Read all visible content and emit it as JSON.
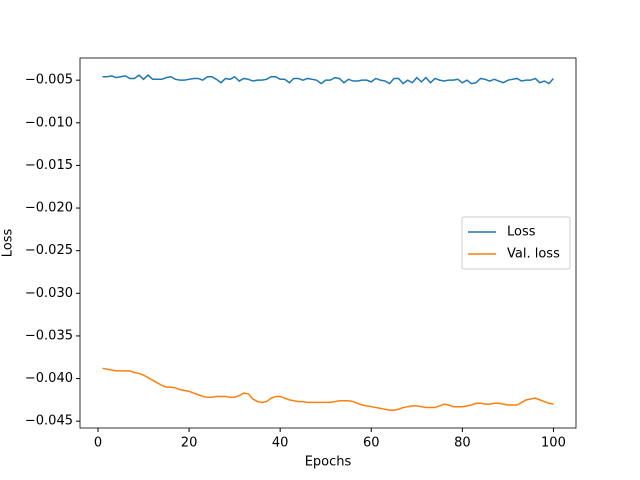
{
  "chart_data": {
    "type": "line",
    "xlabel": "Epochs",
    "ylabel": "Loss",
    "x": [
      1,
      2,
      3,
      4,
      5,
      6,
      7,
      8,
      9,
      10,
      11,
      12,
      13,
      14,
      15,
      16,
      17,
      18,
      19,
      20,
      21,
      22,
      23,
      24,
      25,
      26,
      27,
      28,
      29,
      30,
      31,
      32,
      33,
      34,
      35,
      36,
      37,
      38,
      39,
      40,
      41,
      42,
      43,
      44,
      45,
      46,
      47,
      48,
      49,
      50,
      51,
      52,
      53,
      54,
      55,
      56,
      57,
      58,
      59,
      60,
      61,
      62,
      63,
      64,
      65,
      66,
      67,
      68,
      69,
      70,
      71,
      72,
      73,
      74,
      75,
      76,
      77,
      78,
      79,
      80,
      81,
      82,
      83,
      84,
      85,
      86,
      87,
      88,
      89,
      90,
      91,
      92,
      93,
      94,
      95,
      96,
      97,
      98,
      99,
      100
    ],
    "series": [
      {
        "name": "Loss",
        "color": "#1f77b4",
        "values": [
          -0.0046,
          -0.0046,
          -0.0045,
          -0.0047,
          -0.0046,
          -0.0045,
          -0.0048,
          -0.0048,
          -0.0044,
          -0.0049,
          -0.0044,
          -0.0049,
          -0.0049,
          -0.0049,
          -0.0047,
          -0.0046,
          -0.0049,
          -0.005,
          -0.005,
          -0.0049,
          -0.0048,
          -0.0048,
          -0.005,
          -0.0046,
          -0.0046,
          -0.0049,
          -0.0053,
          -0.0048,
          -0.0049,
          -0.0046,
          -0.0051,
          -0.0048,
          -0.0049,
          -0.0051,
          -0.005,
          -0.005,
          -0.0049,
          -0.0046,
          -0.0046,
          -0.0049,
          -0.0049,
          -0.0053,
          -0.0048,
          -0.0048,
          -0.005,
          -0.0048,
          -0.0049,
          -0.005,
          -0.0054,
          -0.005,
          -0.005,
          -0.0047,
          -0.0048,
          -0.0053,
          -0.0049,
          -0.0051,
          -0.0051,
          -0.005,
          -0.005,
          -0.0052,
          -0.0048,
          -0.005,
          -0.0051,
          -0.0054,
          -0.0048,
          -0.0048,
          -0.0054,
          -0.005,
          -0.0053,
          -0.0047,
          -0.0052,
          -0.0047,
          -0.0053,
          -0.0048,
          -0.005,
          -0.0051,
          -0.005,
          -0.005,
          -0.0049,
          -0.0053,
          -0.005,
          -0.0054,
          -0.0053,
          -0.0048,
          -0.0049,
          -0.0051,
          -0.0049,
          -0.0051,
          -0.0053,
          -0.005,
          -0.0049,
          -0.0048,
          -0.0051,
          -0.005,
          -0.005,
          -0.0048,
          -0.0053,
          -0.0051,
          -0.0054,
          -0.0048
        ]
      },
      {
        "name": "Val. loss",
        "color": "#ff7f0e",
        "values": [
          -0.0388,
          -0.0389,
          -0.039,
          -0.0391,
          -0.0391,
          -0.0391,
          -0.0391,
          -0.0393,
          -0.0394,
          -0.0396,
          -0.0399,
          -0.0402,
          -0.0405,
          -0.0408,
          -0.041,
          -0.041,
          -0.0411,
          -0.0413,
          -0.0414,
          -0.0415,
          -0.0417,
          -0.0419,
          -0.0421,
          -0.0422,
          -0.0422,
          -0.0421,
          -0.0421,
          -0.0421,
          -0.0422,
          -0.0422,
          -0.042,
          -0.0417,
          -0.0418,
          -0.0424,
          -0.0427,
          -0.0428,
          -0.0427,
          -0.0423,
          -0.0421,
          -0.0421,
          -0.0423,
          -0.0425,
          -0.0426,
          -0.0427,
          -0.0427,
          -0.0428,
          -0.0428,
          -0.0428,
          -0.0428,
          -0.0428,
          -0.0428,
          -0.0427,
          -0.0426,
          -0.0426,
          -0.0426,
          -0.0427,
          -0.0429,
          -0.0431,
          -0.0432,
          -0.0433,
          -0.0434,
          -0.0435,
          -0.0436,
          -0.0437,
          -0.0437,
          -0.0436,
          -0.0434,
          -0.0433,
          -0.0432,
          -0.0432,
          -0.0433,
          -0.0434,
          -0.0434,
          -0.0434,
          -0.0432,
          -0.043,
          -0.0431,
          -0.0433,
          -0.0433,
          -0.0433,
          -0.0432,
          -0.0431,
          -0.0429,
          -0.0429,
          -0.043,
          -0.043,
          -0.0429,
          -0.0429,
          -0.043,
          -0.0431,
          -0.0431,
          -0.0431,
          -0.0428,
          -0.0425,
          -0.0424,
          -0.0423,
          -0.0425,
          -0.0427,
          -0.0429,
          -0.043
        ]
      }
    ],
    "xlim": [
      -3.95,
      104.95
    ],
    "ylim": [
      -0.0458,
      -0.0024
    ],
    "xticks": [
      0,
      20,
      40,
      60,
      80,
      100
    ],
    "yticks": [
      {
        "value": -0.005,
        "label": "−0.005"
      },
      {
        "value": -0.01,
        "label": "−0.010"
      },
      {
        "value": -0.015,
        "label": "−0.015"
      },
      {
        "value": -0.02,
        "label": "−0.020"
      },
      {
        "value": -0.025,
        "label": "−0.025"
      },
      {
        "value": -0.03,
        "label": "−0.030"
      },
      {
        "value": -0.035,
        "label": "−0.035"
      },
      {
        "value": -0.04,
        "label": "−0.040"
      },
      {
        "value": -0.045,
        "label": "−0.045"
      }
    ],
    "legend": "center right",
    "grid": false
  }
}
